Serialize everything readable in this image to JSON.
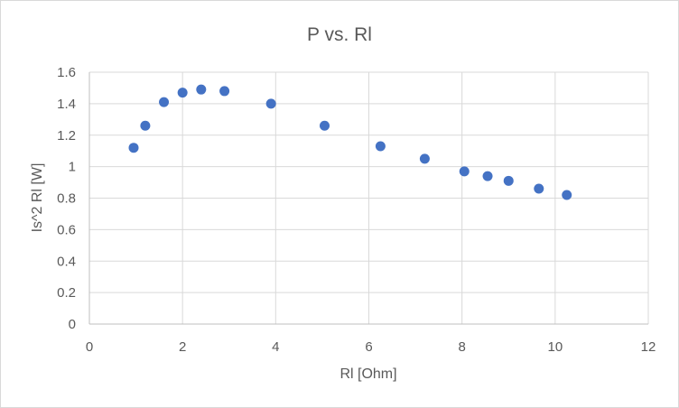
{
  "chart_data": {
    "type": "scatter",
    "title": "P vs. Rl",
    "xlabel": "Rl [Ohm]",
    "ylabel": "Is^2 Rl [W]",
    "xlim": [
      0,
      12
    ],
    "ylim": [
      0,
      1.6
    ],
    "x_ticks": [
      "0",
      "2",
      "4",
      "6",
      "8",
      "10",
      "12"
    ],
    "y_ticks": [
      "0",
      "0.2",
      "0.4",
      "0.6",
      "0.8",
      "1",
      "1.2",
      "1.4",
      "1.6"
    ],
    "grid": true,
    "legend": "none",
    "series": [
      {
        "color": "#4472c4",
        "points": [
          {
            "x": 0.95,
            "y": 1.12
          },
          {
            "x": 1.2,
            "y": 1.26
          },
          {
            "x": 1.6,
            "y": 1.41
          },
          {
            "x": 2.0,
            "y": 1.47
          },
          {
            "x": 2.4,
            "y": 1.49
          },
          {
            "x": 2.9,
            "y": 1.48
          },
          {
            "x": 3.9,
            "y": 1.4
          },
          {
            "x": 5.05,
            "y": 1.26
          },
          {
            "x": 6.25,
            "y": 1.13
          },
          {
            "x": 7.2,
            "y": 1.05
          },
          {
            "x": 8.05,
            "y": 0.97
          },
          {
            "x": 8.55,
            "y": 0.94
          },
          {
            "x": 9.0,
            "y": 0.91
          },
          {
            "x": 9.65,
            "y": 0.86
          },
          {
            "x": 10.25,
            "y": 0.82
          }
        ]
      }
    ]
  }
}
